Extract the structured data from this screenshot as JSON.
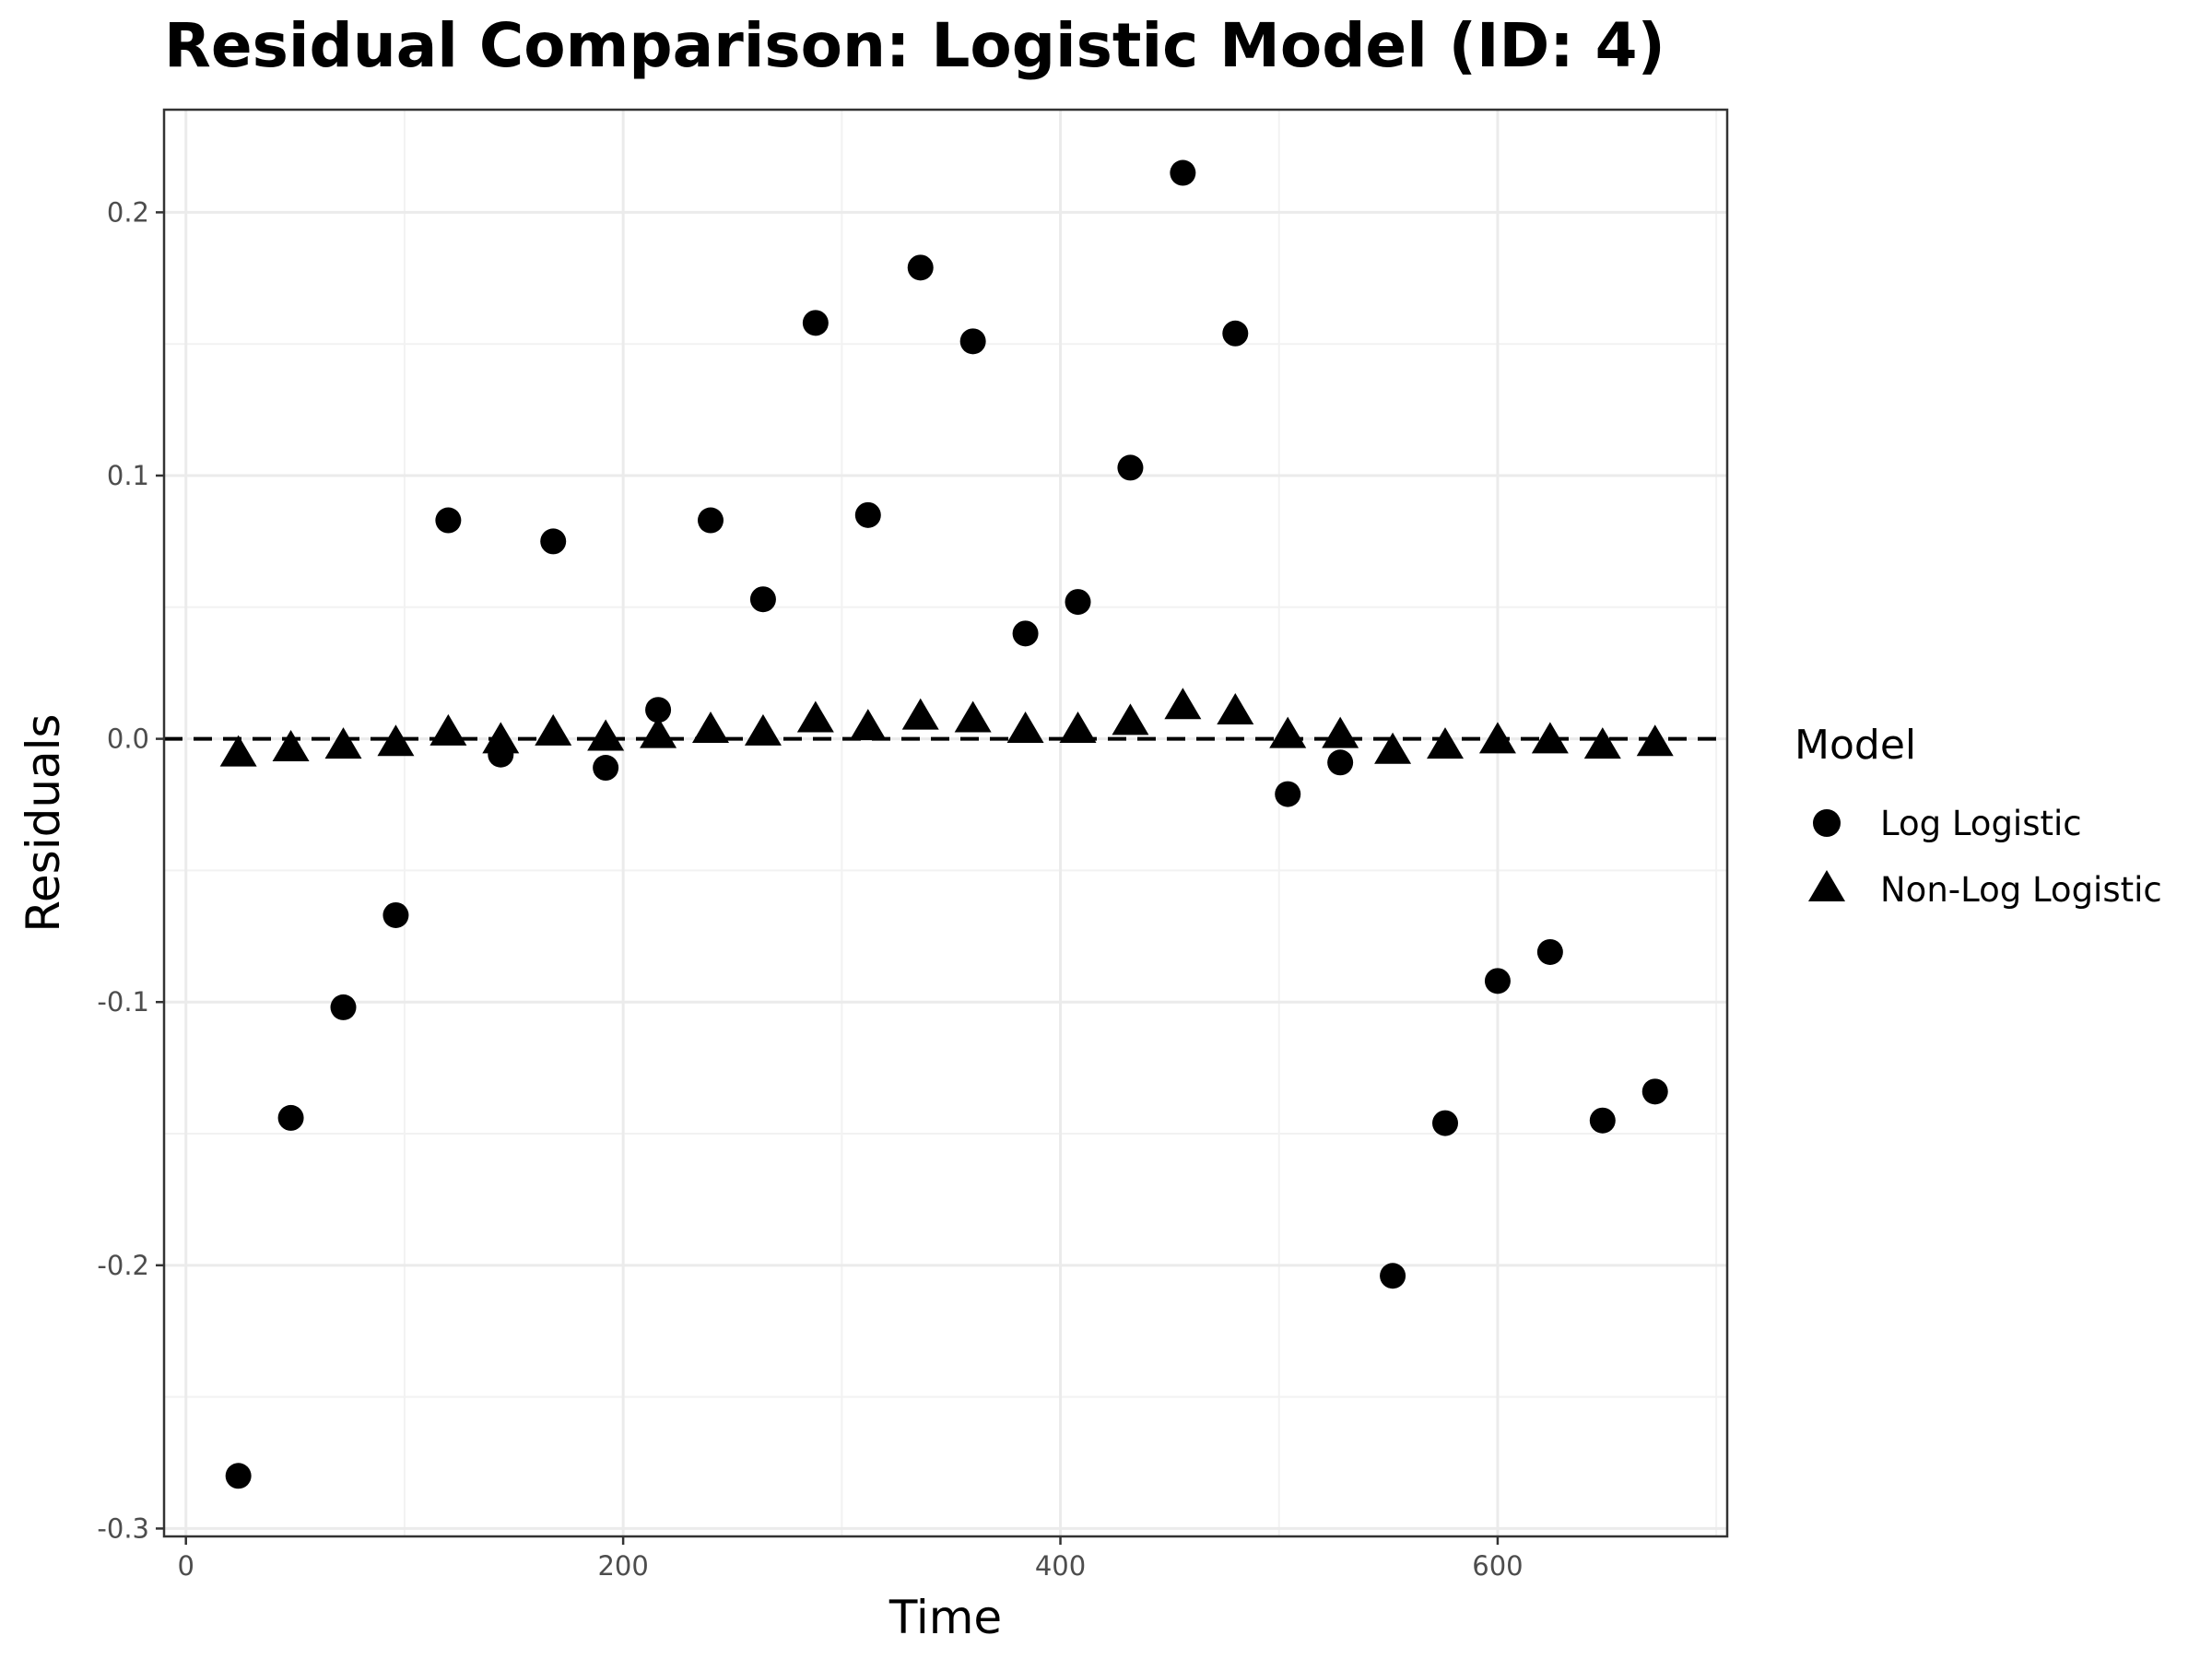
{
  "chart_data": {
    "type": "scatter",
    "title": "Residual Comparison: Logistic Model (ID: 4)",
    "xlabel": "Time",
    "ylabel": "Residuals",
    "xlim": [
      -10,
      705
    ],
    "ylim": [
      -0.303,
      0.239
    ],
    "x_ticks": [
      0,
      200,
      400,
      600
    ],
    "x_tick_labels": [
      "0",
      "200",
      "400",
      "600"
    ],
    "y_ticks": [
      -0.3,
      -0.2,
      -0.1,
      0.0,
      0.1,
      0.2
    ],
    "y_tick_labels": [
      "-0.3",
      "-0.2",
      "-0.1",
      "0.0",
      "0.1",
      "0.2"
    ],
    "grid": true,
    "reference_line": {
      "y": 0,
      "style": "dashed"
    },
    "legend": {
      "title": "Model",
      "placement": "right"
    },
    "series": [
      {
        "name": "Log Logistic",
        "marker": "circle",
        "color": "#000000",
        "points": [
          [
            24,
            -0.28
          ],
          [
            48,
            -0.144
          ],
          [
            72,
            -0.102
          ],
          [
            96,
            -0.067
          ],
          [
            120,
            0.083
          ],
          [
            144,
            -0.006
          ],
          [
            168,
            0.075
          ],
          [
            192,
            -0.011
          ],
          [
            216,
            0.011
          ],
          [
            240,
            0.083
          ],
          [
            264,
            0.053
          ],
          [
            288,
            0.158
          ],
          [
            312,
            0.085
          ],
          [
            336,
            0.179
          ],
          [
            360,
            0.151
          ],
          [
            384,
            0.04
          ],
          [
            408,
            0.052
          ],
          [
            432,
            0.103
          ],
          [
            456,
            0.215
          ],
          [
            480,
            0.154
          ],
          [
            504,
            -0.021
          ],
          [
            528,
            -0.009
          ],
          [
            552,
            -0.204
          ],
          [
            576,
            -0.146
          ],
          [
            600,
            -0.092
          ],
          [
            624,
            -0.081
          ],
          [
            648,
            -0.145
          ],
          [
            672,
            -0.134
          ]
        ]
      },
      {
        "name": "Non-Log Logistic",
        "marker": "triangle",
        "color": "#000000",
        "points": [
          [
            24,
            -0.006
          ],
          [
            48,
            -0.004
          ],
          [
            72,
            -0.003
          ],
          [
            96,
            -0.002
          ],
          [
            120,
            0.002
          ],
          [
            144,
            -0.001
          ],
          [
            168,
            0.002
          ],
          [
            192,
            0.0
          ],
          [
            216,
            0.001
          ],
          [
            240,
            0.003
          ],
          [
            264,
            0.002
          ],
          [
            288,
            0.007
          ],
          [
            312,
            0.004
          ],
          [
            336,
            0.008
          ],
          [
            360,
            0.007
          ],
          [
            384,
            0.003
          ],
          [
            408,
            0.003
          ],
          [
            432,
            0.006
          ],
          [
            456,
            0.012
          ],
          [
            480,
            0.01
          ],
          [
            504,
            0.001
          ],
          [
            528,
            0.001
          ],
          [
            552,
            -0.005
          ],
          [
            576,
            -0.003
          ],
          [
            600,
            -0.001
          ],
          [
            624,
            -0.001
          ],
          [
            648,
            -0.003
          ],
          [
            672,
            -0.002
          ]
        ]
      }
    ]
  }
}
